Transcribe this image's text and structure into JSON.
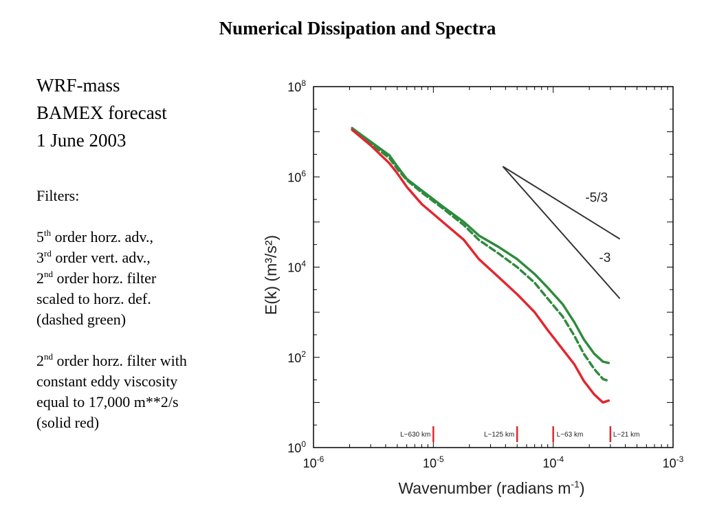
{
  "title": "Numerical Dissipation and Spectra",
  "heading_lines": [
    "WRF-mass",
    "BAMEX forecast",
    "1 June 2003"
  ],
  "filters": {
    "label": "Filters:",
    "advection": [
      {
        "num": "5",
        "sup": "th",
        "text": " order horz. adv.,"
      },
      {
        "num": "3",
        "sup": "rd",
        "text": " order vert. adv.,"
      }
    ],
    "filter1": {
      "num": "2",
      "sup": "nd",
      "text": " order horz. filter",
      "lines": [
        "scaled to horz. def.",
        "(dashed green)"
      ]
    },
    "filter2": {
      "num": "2",
      "sup": "nd",
      "text": " order horz. filter with",
      "lines": [
        "constant eddy viscosity",
        "equal to 17,000 m**2/s",
        "(solid red)"
      ]
    }
  },
  "chart_data": {
    "type": "line",
    "xscale": "log",
    "yscale": "log",
    "xlim": [
      1e-06,
      0.001
    ],
    "ylim": [
      1,
      100000000.0
    ],
    "xlabel": "Wavenumber  (radians m",
    "xlabel_sup": "-1",
    "xlabel_end": ")",
    "ylabel": "E(k)  (m³/s²)",
    "x_tick_labels": [
      {
        "base": "10",
        "exp": "-6"
      },
      {
        "base": "10",
        "exp": "-5"
      },
      {
        "base": "10",
        "exp": "-4"
      },
      {
        "base": "10",
        "exp": "-3"
      }
    ],
    "y_tick_labels": [
      {
        "base": "10",
        "exp": "0"
      },
      {
        "base": "10",
        "exp": "2"
      },
      {
        "base": "10",
        "exp": "4"
      },
      {
        "base": "10",
        "exp": "6"
      },
      {
        "base": "10",
        "exp": "8"
      }
    ],
    "series": [
      {
        "style": "solid",
        "color": "#2e8b3e",
        "x": [
          2.1e-06,
          3e-06,
          4.3e-06,
          5e-06,
          6e-06,
          8e-06,
          1.2e-05,
          1.8e-05,
          2.4e-05,
          3.5e-05,
          5e-05,
          7e-05,
          9e-05,
          0.00012,
          0.00015,
          0.00018,
          0.00022,
          0.00026,
          0.00029
        ],
        "y": [
          12000000.0,
          6000000.0,
          3000000.0,
          1700000.0,
          900000.0,
          500000.0,
          220000.0,
          100000.0,
          50000.0,
          28000.0,
          15000.0,
          7000.0,
          3500.0,
          1500.0,
          600,
          250,
          120,
          80,
          75
        ]
      },
      {
        "style": "dashed",
        "color": "#2e8b3e",
        "x": [
          2.1e-06,
          3e-06,
          4.3e-06,
          5e-06,
          6e-06,
          8e-06,
          1.2e-05,
          1.8e-05,
          2.4e-05,
          3.5e-05,
          5e-05,
          7e-05,
          9e-05,
          0.00012,
          0.00015,
          0.00018,
          0.00022,
          0.00026,
          0.00029
        ],
        "y": [
          12000000.0,
          5500000.0,
          2600000.0,
          1500000.0,
          850000.0,
          450000.0,
          200000.0,
          85000.0,
          40000.0,
          20000.0,
          10000.0,
          4500.0,
          2000.0,
          800,
          300,
          120,
          55,
          33,
          30
        ]
      },
      {
        "style": "solid",
        "color": "#e3262e",
        "x": [
          2.1e-06,
          3e-06,
          4.3e-06,
          5e-06,
          6e-06,
          8e-06,
          1.2e-05,
          1.8e-05,
          2.4e-05,
          3.5e-05,
          5e-05,
          7e-05,
          9e-05,
          0.00012,
          0.00015,
          0.00018,
          0.00022,
          0.00026,
          0.00029
        ],
        "y": [
          11000000.0,
          5000000.0,
          2000000.0,
          1200000.0,
          600000.0,
          250000.0,
          100000.0,
          40000.0,
          15000.0,
          6000.0,
          2500.0,
          1000.0,
          400,
          150,
          70,
          30,
          15,
          10,
          11
        ]
      }
    ],
    "reference_slopes": [
      {
        "label": "-5/3",
        "x": [
          3.8e-05,
          0.00036
        ],
        "y": [
          1700000.0,
          42000.0
        ],
        "label_at": [
          0.00023,
          280000.0
        ]
      },
      {
        "label": "-3",
        "x": [
          3.8e-05,
          0.00036
        ],
        "y": [
          1700000.0,
          2000.0
        ],
        "label_at": [
          0.00027,
          13000.0
        ]
      }
    ],
    "scale_markers": [
      {
        "label": "L~630 km",
        "x": 1e-05
      },
      {
        "label": "L~125 km",
        "x": 5e-05
      },
      {
        "label": "L~63 km",
        "x": 0.0001
      },
      {
        "label": "L~21 km",
        "x": 0.0003
      }
    ],
    "marker_color": "#e3262e",
    "line_color": "#333333"
  }
}
